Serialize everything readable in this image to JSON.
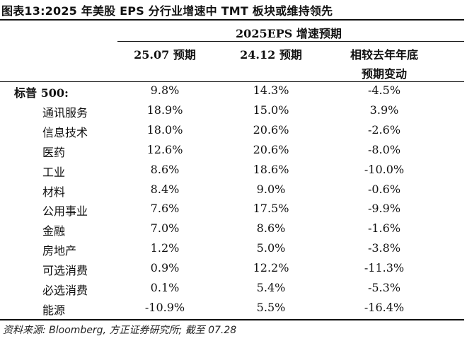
{
  "title": "图表13:2025 年美股 EPS 分行业增速中 TMT 板块或维持领先",
  "table": {
    "group_header": "2025EPS 增速预期",
    "col1": "25.07 预期",
    "col2": "24.12 预期",
    "col3_line1": "相较去年年底",
    "col3_line2": "预期变动",
    "rows": [
      {
        "label": "标普 500:",
        "a": "9.8%",
        "b": "14.3%",
        "c": "-4.5%"
      },
      {
        "label": "通讯服务",
        "a": "18.9%",
        "b": "15.0%",
        "c": "3.9%"
      },
      {
        "label": "信息技术",
        "a": "18.0%",
        "b": "20.6%",
        "c": "-2.6%"
      },
      {
        "label": "医药",
        "a": "12.6%",
        "b": "20.6%",
        "c": "-8.0%"
      },
      {
        "label": "工业",
        "a": "8.6%",
        "b": "18.6%",
        "c": "-10.0%"
      },
      {
        "label": "材料",
        "a": "8.4%",
        "b": "9.0%",
        "c": "-0.6%"
      },
      {
        "label": "公用事业",
        "a": "7.6%",
        "b": "17.5%",
        "c": "-9.9%"
      },
      {
        "label": "金融",
        "a": "7.0%",
        "b": "8.6%",
        "c": "-1.6%"
      },
      {
        "label": "房地产",
        "a": "1.2%",
        "b": "5.0%",
        "c": "-3.8%"
      },
      {
        "label": "可选消费",
        "a": "0.9%",
        "b": "12.2%",
        "c": "-11.3%"
      },
      {
        "label": "必选消费",
        "a": "0.1%",
        "b": "5.4%",
        "c": "-5.3%"
      },
      {
        "label": "能源",
        "a": "-10.9%",
        "b": "5.5%",
        "c": "-16.4%"
      }
    ]
  },
  "source": "资料来源: Bloomberg, 方正证券研究所; 截至 07.28"
}
